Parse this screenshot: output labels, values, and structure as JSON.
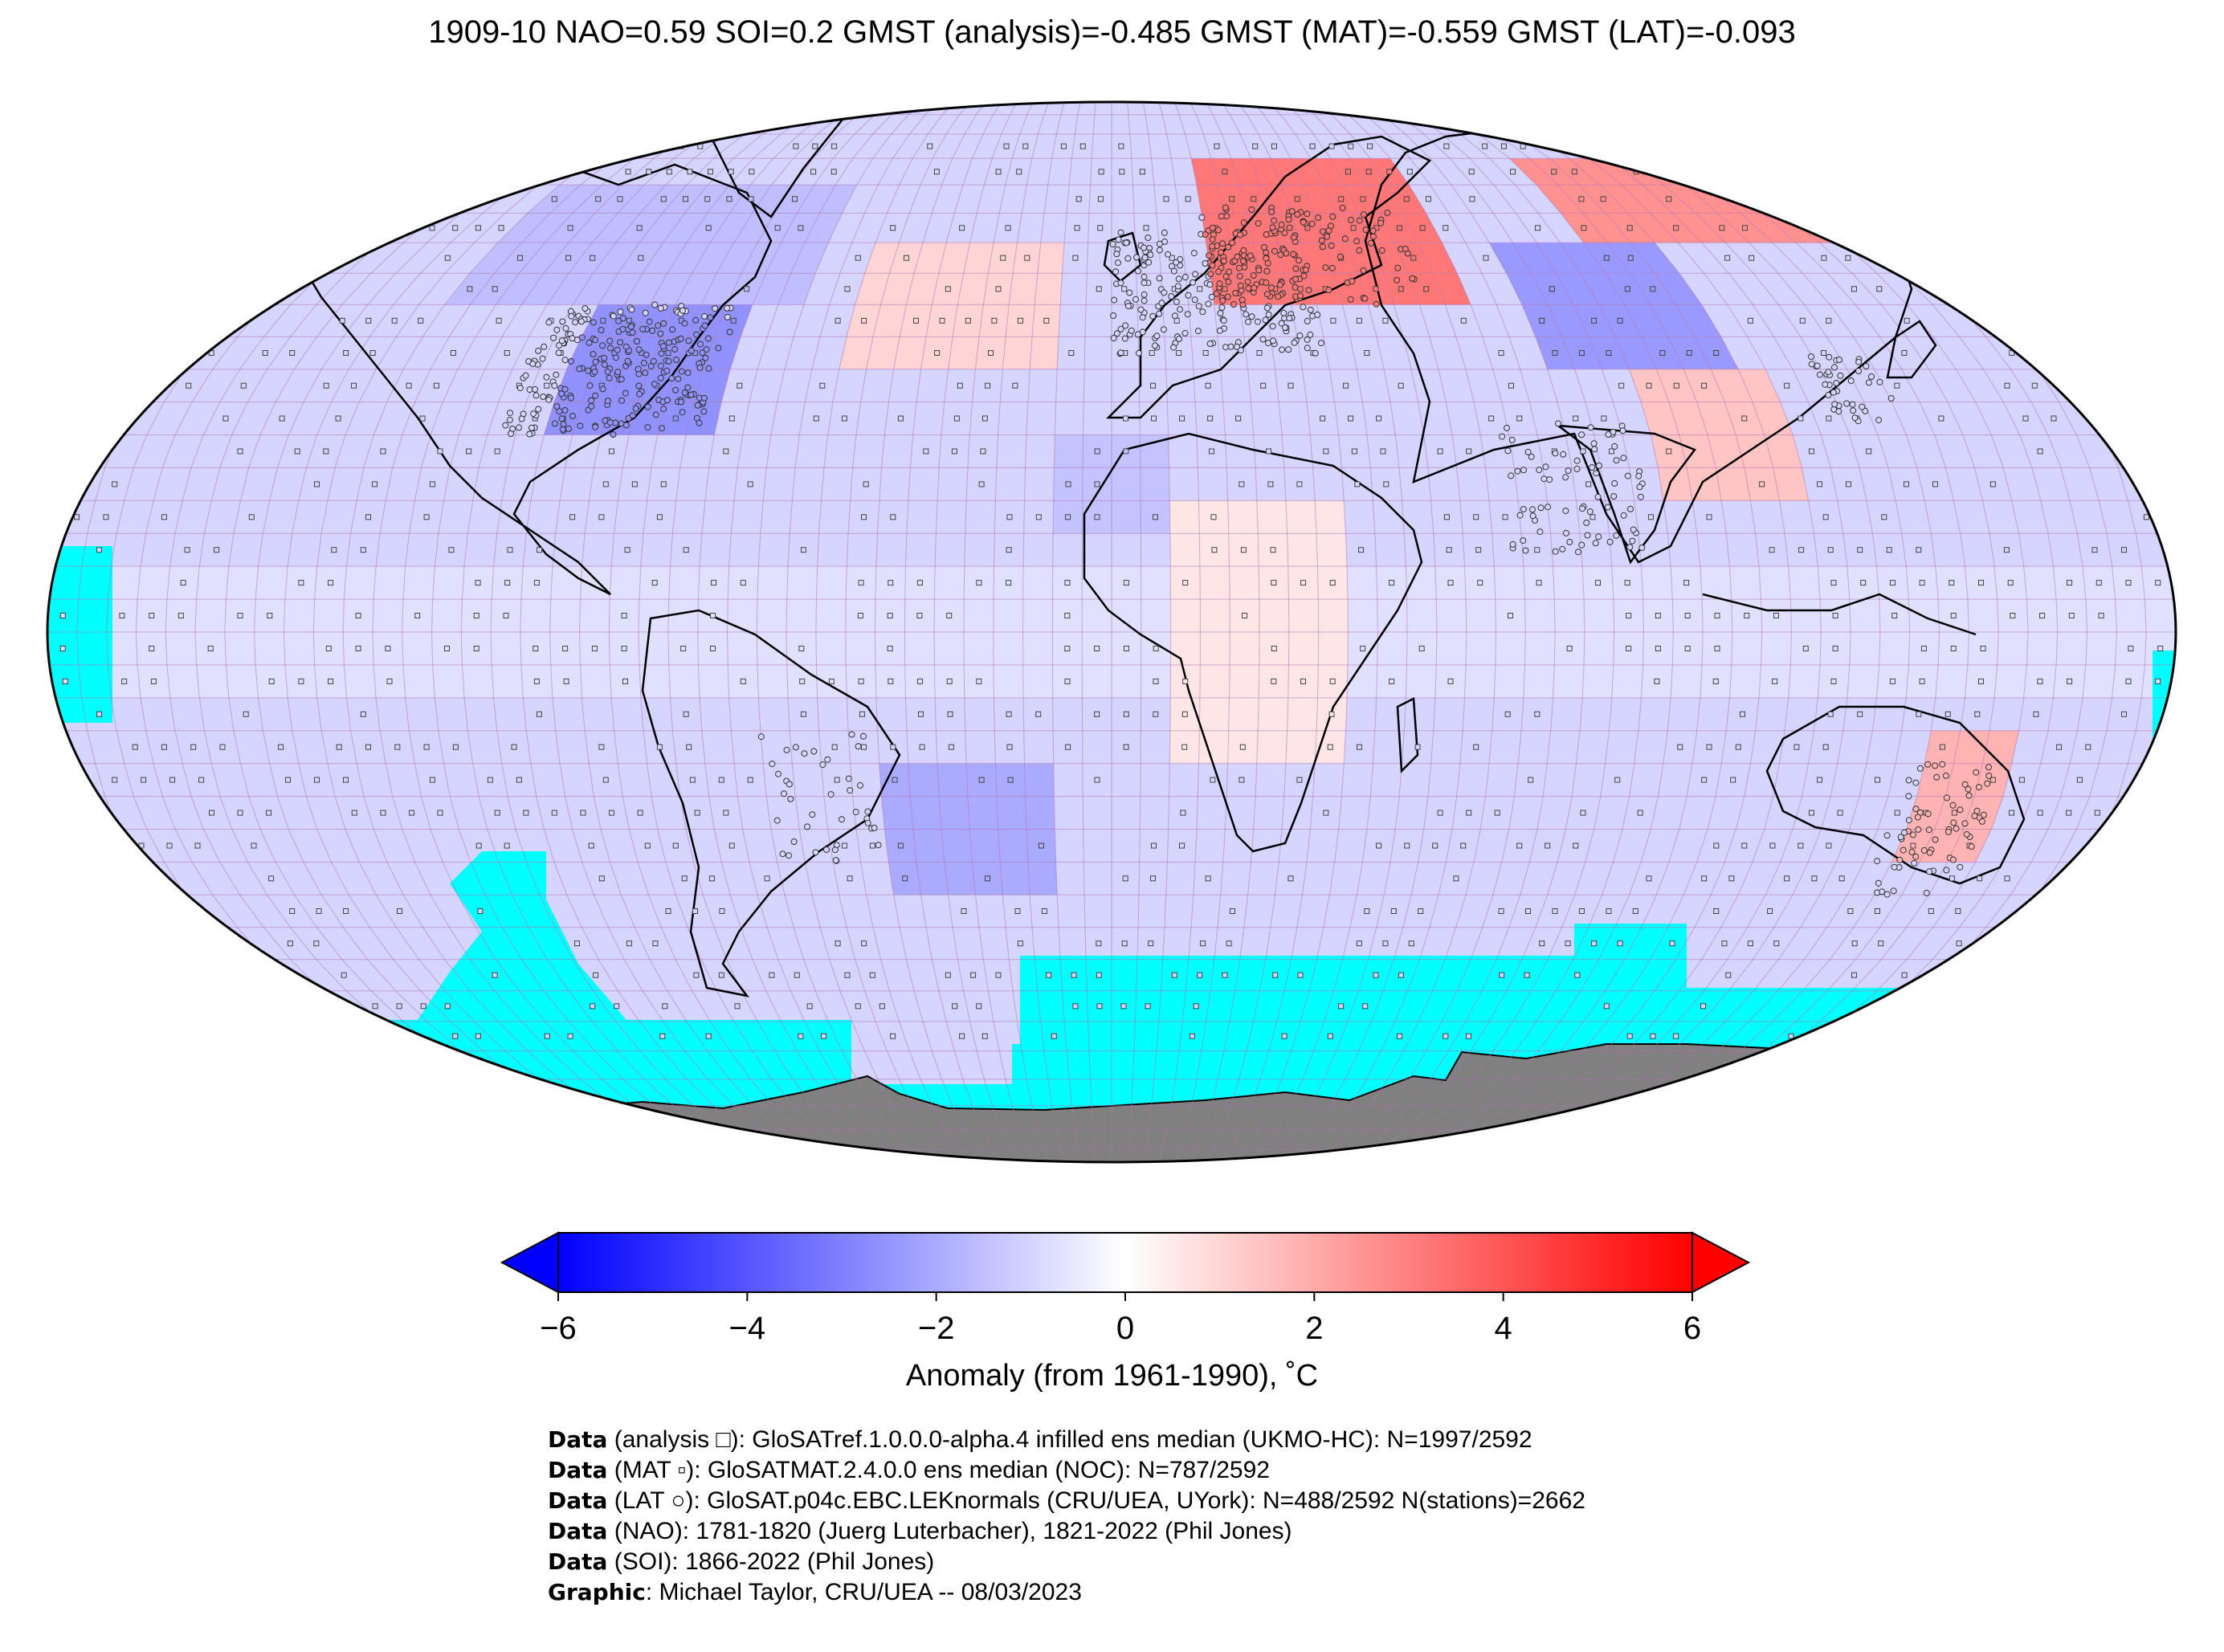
{
  "title": "1909-10 NAO=0.59 SOI=0.2 GMST (analysis)=-0.485 GMST (MAT)=-0.559 GMST (LAT)=-0.093",
  "colors": {
    "no_data": "#00ffff",
    "antarctica": "#808080",
    "grid": "#b070b0",
    "coast": "#000000",
    "cmap_low": "#0000ff",
    "cmap_mid": "#ffffff",
    "cmap_high": "#ff0000"
  },
  "colorbar": {
    "label": "Anomaly (from 1961-1990), ˚C",
    "min": -6,
    "max": 6,
    "ticks": [
      {
        "value": -6,
        "label": "−6"
      },
      {
        "value": -4,
        "label": "−4"
      },
      {
        "value": -2,
        "label": "−2"
      },
      {
        "value": 0,
        "label": "0"
      },
      {
        "value": 2,
        "label": "2"
      },
      {
        "value": 4,
        "label": "4"
      },
      {
        "value": 6,
        "label": "6"
      }
    ]
  },
  "map": {
    "projection": "Robinson",
    "grid_resolution_deg": 5,
    "anomaly_regions_degC": [
      {
        "region": "northern Europe / western Russia",
        "lon": [
          20,
          70
        ],
        "lat": [
          50,
          75
        ],
        "anomaly": 3.2
      },
      {
        "region": "north-east Siberia",
        "lon": [
          100,
          160
        ],
        "lat": [
          60,
          75
        ],
        "anomaly": 2.6
      },
      {
        "region": "central Asia / Mongolia",
        "lon": [
          80,
          115
        ],
        "lat": [
          42,
          58
        ],
        "anomaly": -2.4
      },
      {
        "region": "China",
        "lon": [
          95,
          120
        ],
        "lat": [
          20,
          40
        ],
        "anomaly": 1.4
      },
      {
        "region": "central United States",
        "lon": [
          -100,
          -70
        ],
        "lat": [
          30,
          48
        ],
        "anomaly": -2.6
      },
      {
        "region": "Canada / Hudson Bay",
        "lon": [
          -130,
          -60
        ],
        "lat": [
          50,
          70
        ],
        "anomaly": -1.5
      },
      {
        "region": "North Atlantic",
        "lon": [
          -50,
          -10
        ],
        "lat": [
          40,
          60
        ],
        "anomaly": 1.0
      },
      {
        "region": "eastern Australia",
        "lon": [
          140,
          155
        ],
        "lat": [
          -35,
          -15
        ],
        "anomaly": 1.8
      },
      {
        "region": "South Atlantic",
        "lon": [
          -40,
          -10
        ],
        "lat": [
          -40,
          -20
        ],
        "anomaly": -2.0
      },
      {
        "region": "Africa",
        "lon": [
          10,
          40
        ],
        "lat": [
          -20,
          20
        ],
        "anomaly": 0.6
      },
      {
        "region": "Sahara",
        "lon": [
          -10,
          10
        ],
        "lat": [
          15,
          30
        ],
        "anomaly": -1.4
      }
    ]
  },
  "credits": [
    {
      "key": "Data",
      "text": " (analysis □): GloSATref.1.0.0.0-alpha.4 infilled ens median (UKMO-HC): N=1997/2592"
    },
    {
      "key": "Data",
      "text": " (MAT ▫): GloSATMAT.2.4.0.0 ens median (NOC): N=787/2592"
    },
    {
      "key": "Data",
      "text": " (LAT ○): GloSAT.p04c.EBC.LEKnormals (CRU/UEA, UYork): N=488/2592 N(stations)=2662"
    },
    {
      "key": "Data",
      "text": " (NAO): 1781-1820 (Juerg Luterbacher), 1821-2022 (Phil Jones)"
    },
    {
      "key": "Data",
      "text": " (SOI): 1866-2022 (Phil Jones)"
    },
    {
      "key": "Graphic",
      "text": ": Michael Taylor, CRU/UEA -- 08/03/2023"
    }
  ]
}
